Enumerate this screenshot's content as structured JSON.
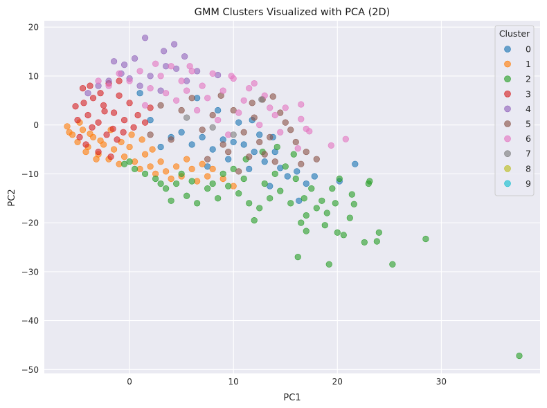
{
  "chart_data": {
    "type": "scatter",
    "title": "GMM Clusters Visualized with PCA (2D)",
    "xlabel": "PC1",
    "ylabel": "PC2",
    "xlim": [
      -8.2,
      39.5
    ],
    "ylim": [
      -50.8,
      21.3
    ],
    "xticks": [
      0,
      10,
      20,
      30
    ],
    "yticks": [
      20,
      10,
      0,
      -10,
      -20,
      -30,
      -40,
      -50
    ],
    "grid": true,
    "background": "#eaeaf2",
    "legend": {
      "title": "Cluster",
      "placement": "upper-right",
      "entries": [
        "0",
        "1",
        "2",
        "3",
        "4",
        "5",
        "6",
        "7",
        "8",
        "9"
      ]
    },
    "series": [
      {
        "name": "0",
        "color": "#1f77b4",
        "points": [
          [
            21.7,
            -8.0
          ],
          [
            20.2,
            -11.5
          ],
          [
            17.8,
            -10.5
          ],
          [
            16.1,
            -9.5
          ],
          [
            14.5,
            -8.8
          ],
          [
            13.0,
            -7.5
          ],
          [
            12.0,
            -5.5
          ],
          [
            11.0,
            -4.0
          ],
          [
            10.0,
            -3.5
          ],
          [
            9.0,
            -3.0
          ],
          [
            8.0,
            -5.0
          ],
          [
            7.0,
            -2.5
          ],
          [
            6.0,
            -4.0
          ],
          [
            5.0,
            -1.5
          ],
          [
            4.0,
            -2.5
          ],
          [
            3.0,
            -4.5
          ],
          [
            1.0,
            6.5
          ],
          [
            2.0,
            1.0
          ],
          [
            6.5,
            5.5
          ],
          [
            8.5,
            3.0
          ],
          [
            10.5,
            0.5
          ],
          [
            12.5,
            -2.0
          ],
          [
            14.0,
            -5.5
          ],
          [
            15.2,
            -10.5
          ],
          [
            17.0,
            -12.0
          ],
          [
            16.3,
            -15.5
          ],
          [
            13.5,
            -12.5
          ],
          [
            11.5,
            -9.0
          ],
          [
            9.5,
            -7.0
          ],
          [
            7.5,
            -8.5
          ],
          [
            13.8,
            -2.5
          ],
          [
            11.8,
            1.0
          ]
        ]
      },
      {
        "name": "1",
        "color": "#ff7f0e",
        "points": [
          [
            -6.0,
            -0.3
          ],
          [
            -5.5,
            -2.0
          ],
          [
            -5.0,
            -3.5
          ],
          [
            -4.5,
            -1.0
          ],
          [
            -4.0,
            -4.5
          ],
          [
            -3.5,
            -2.5
          ],
          [
            -3.0,
            -6.0
          ],
          [
            -2.5,
            -4.0
          ],
          [
            -2.0,
            -7.0
          ],
          [
            -1.5,
            -5.0
          ],
          [
            -1.0,
            -8.0
          ],
          [
            -0.5,
            -6.5
          ],
          [
            0.0,
            -4.5
          ],
          [
            0.5,
            -7.5
          ],
          [
            1.0,
            -9.0
          ],
          [
            1.5,
            -6.0
          ],
          [
            2.0,
            -8.5
          ],
          [
            2.5,
            -10.0
          ],
          [
            3.0,
            -7.5
          ],
          [
            3.5,
            -9.5
          ],
          [
            4.0,
            -11.0
          ],
          [
            4.5,
            -8.5
          ],
          [
            5.0,
            -10.5
          ],
          [
            5.5,
            -7.0
          ],
          [
            6.0,
            -9.0
          ],
          [
            6.5,
            -11.5
          ],
          [
            7.0,
            -8.0
          ],
          [
            7.5,
            -10.5
          ],
          [
            8.0,
            -9.0
          ],
          [
            9.0,
            -11.0
          ],
          [
            10.0,
            -12.5
          ],
          [
            -5.8,
            -1.5
          ],
          [
            -4.8,
            0.5
          ],
          [
            -3.8,
            -1.8
          ],
          [
            -2.8,
            -3.2
          ],
          [
            -1.8,
            -1.0
          ],
          [
            -0.8,
            -3.5
          ],
          [
            0.2,
            -2.0
          ],
          [
            1.2,
            -3.0
          ],
          [
            2.2,
            -5.0
          ],
          [
            -4.2,
            -5.5
          ],
          [
            -3.2,
            -7.0
          ]
        ]
      },
      {
        "name": "2",
        "color": "#2ca02c",
        "points": [
          [
            37.5,
            -47.2
          ],
          [
            28.5,
            -23.3
          ],
          [
            25.3,
            -28.5
          ],
          [
            24.0,
            -22.0
          ],
          [
            23.8,
            -23.8
          ],
          [
            22.6,
            -24.0
          ],
          [
            20.0,
            -22.0
          ],
          [
            20.6,
            -22.5
          ],
          [
            19.2,
            -28.5
          ],
          [
            16.2,
            -27.0
          ],
          [
            17.0,
            -21.7
          ],
          [
            21.2,
            -19.0
          ],
          [
            21.6,
            -16.2
          ],
          [
            21.4,
            -14.2
          ],
          [
            23.1,
            -11.5
          ],
          [
            23.0,
            -12.0
          ],
          [
            20.2,
            -11.0
          ],
          [
            19.5,
            -13.0
          ],
          [
            18.5,
            -15.5
          ],
          [
            18.0,
            -17.0
          ],
          [
            17.0,
            -18.5
          ],
          [
            16.5,
            -20.0
          ],
          [
            15.5,
            -16.0
          ],
          [
            14.5,
            -13.5
          ],
          [
            13.5,
            -15.0
          ],
          [
            12.5,
            -17.0
          ],
          [
            11.5,
            -16.0
          ],
          [
            10.5,
            -14.0
          ],
          [
            9.5,
            -12.5
          ],
          [
            8.5,
            -15.0
          ],
          [
            7.5,
            -13.0
          ],
          [
            6.5,
            -16.0
          ],
          [
            5.5,
            -14.5
          ],
          [
            4.5,
            -12.0
          ],
          [
            3.5,
            -13.0
          ],
          [
            2.5,
            -11.0
          ],
          [
            1.5,
            -10.0
          ],
          [
            0.5,
            -9.0
          ],
          [
            0.0,
            -7.5
          ],
          [
            -0.5,
            -8.0
          ],
          [
            12.0,
            -19.5
          ],
          [
            13.0,
            -12.0
          ],
          [
            14.0,
            -10.0
          ],
          [
            15.0,
            -8.5
          ],
          [
            16.0,
            -11.0
          ],
          [
            17.5,
            -13.0
          ],
          [
            18.8,
            -20.5
          ],
          [
            19.0,
            -18.0
          ],
          [
            11.0,
            -11.0
          ],
          [
            10.0,
            -9.0
          ],
          [
            9.0,
            -10.0
          ],
          [
            8.0,
            -12.0
          ],
          [
            6.0,
            -11.5
          ],
          [
            5.0,
            -10.0
          ],
          [
            4.0,
            -15.5
          ],
          [
            3.0,
            -12.0
          ],
          [
            15.8,
            -6.0
          ],
          [
            14.2,
            -4.5
          ],
          [
            12.8,
            -5.5
          ],
          [
            11.2,
            -7.0
          ],
          [
            16.8,
            -15.0
          ],
          [
            19.8,
            -16.0
          ]
        ]
      },
      {
        "name": "3",
        "color": "#d62728",
        "points": [
          [
            -5.2,
            3.8
          ],
          [
            -4.5,
            7.5
          ],
          [
            -4.0,
            2.0
          ],
          [
            -3.5,
            5.5
          ],
          [
            -3.0,
            0.5
          ],
          [
            -2.5,
            4.0
          ],
          [
            -2.0,
            8.5
          ],
          [
            -1.5,
            2.5
          ],
          [
            -1.0,
            6.0
          ],
          [
            -0.5,
            1.0
          ],
          [
            0.0,
            4.5
          ],
          [
            -4.8,
            -2.5
          ],
          [
            -4.2,
            -4.0
          ],
          [
            -3.6,
            -0.5
          ],
          [
            -3.0,
            -5.5
          ],
          [
            -2.2,
            -2.0
          ],
          [
            -1.8,
            -6.5
          ],
          [
            -1.2,
            -3.0
          ],
          [
            -0.6,
            -1.5
          ],
          [
            0.4,
            -0.5
          ],
          [
            -5.0,
            1.0
          ],
          [
            -4.4,
            4.5
          ],
          [
            -2.8,
            6.5
          ],
          [
            -1.0,
            9.0
          ],
          [
            0.8,
            2.0
          ],
          [
            1.5,
            0.5
          ],
          [
            2.0,
            3.5
          ],
          [
            -3.8,
            8.0
          ],
          [
            -2.4,
            2.8
          ],
          [
            -1.6,
            -0.8
          ]
        ]
      },
      {
        "name": "4",
        "color": "#9467bd",
        "points": [
          [
            1.5,
            17.8
          ],
          [
            4.3,
            16.5
          ],
          [
            3.3,
            15.1
          ],
          [
            5.3,
            14.0
          ],
          [
            0.5,
            13.6
          ],
          [
            -1.5,
            13.0
          ],
          [
            -0.5,
            12.3
          ],
          [
            -0.8,
            10.5
          ],
          [
            3.5,
            12.0
          ],
          [
            4.5,
            11.5
          ],
          [
            6.5,
            11.0
          ],
          [
            8.5,
            10.2
          ],
          [
            2.0,
            10.0
          ],
          [
            -2.0,
            9.0
          ],
          [
            -3.0,
            8.0
          ],
          [
            -4.0,
            6.5
          ],
          [
            0.0,
            9.5
          ],
          [
            1.0,
            8.0
          ],
          [
            5.5,
            9.0
          ],
          [
            3.0,
            7.0
          ]
        ]
      },
      {
        "name": "5",
        "color": "#8c564b",
        "points": [
          [
            12.8,
            5.2
          ],
          [
            13.5,
            -2.5
          ],
          [
            15.0,
            0.5
          ],
          [
            16.0,
            -3.5
          ],
          [
            14.5,
            2.5
          ],
          [
            13.0,
            -6.0
          ],
          [
            12.0,
            1.5
          ],
          [
            11.0,
            -1.5
          ],
          [
            10.0,
            3.0
          ],
          [
            9.0,
            -4.0
          ],
          [
            8.0,
            2.0
          ],
          [
            7.0,
            -1.0
          ],
          [
            6.0,
            5.5
          ],
          [
            5.0,
            3.0
          ],
          [
            4.0,
            -3.0
          ],
          [
            3.0,
            4.0
          ],
          [
            2.0,
            -2.0
          ],
          [
            17.0,
            -5.5
          ],
          [
            18.0,
            -7.0
          ],
          [
            16.5,
            -8.0
          ],
          [
            14.0,
            -7.5
          ],
          [
            11.5,
            -6.5
          ],
          [
            10.5,
            -9.5
          ],
          [
            9.5,
            -5.5
          ],
          [
            7.5,
            -7.0
          ],
          [
            8.8,
            6.0
          ],
          [
            11.8,
            4.5
          ],
          [
            13.8,
            5.8
          ],
          [
            15.5,
            -1.0
          ],
          [
            12.5,
            -3.5
          ]
        ]
      },
      {
        "name": "6",
        "color": "#e377c2",
        "points": [
          [
            16.5,
            4.2
          ],
          [
            16.5,
            1.2
          ],
          [
            17.0,
            -0.8
          ],
          [
            17.3,
            -1.3
          ],
          [
            19.4,
            -4.2
          ],
          [
            20.8,
            -2.9
          ],
          [
            16.2,
            -4.8
          ],
          [
            15.0,
            3.5
          ],
          [
            14.0,
            2.0
          ],
          [
            13.0,
            6.0
          ],
          [
            12.0,
            8.5
          ],
          [
            11.0,
            5.0
          ],
          [
            10.0,
            9.5
          ],
          [
            9.0,
            7.0
          ],
          [
            8.0,
            10.5
          ],
          [
            7.0,
            8.0
          ],
          [
            6.0,
            11.0
          ],
          [
            5.0,
            9.0
          ],
          [
            4.0,
            12.0
          ],
          [
            3.0,
            10.0
          ],
          [
            2.0,
            7.5
          ],
          [
            1.0,
            11.0
          ],
          [
            0.0,
            9.0
          ],
          [
            -1.0,
            10.5
          ],
          [
            -2.0,
            8.0
          ],
          [
            -3.0,
            9.0
          ],
          [
            4.5,
            5.0
          ],
          [
            6.5,
            3.0
          ],
          [
            8.5,
            1.0
          ],
          [
            10.5,
            2.5
          ],
          [
            12.5,
            0.0
          ],
          [
            14.5,
            -1.5
          ],
          [
            9.5,
            -2.0
          ],
          [
            7.5,
            5.5
          ],
          [
            5.5,
            7.0
          ],
          [
            3.5,
            6.5
          ],
          [
            1.5,
            4.0
          ],
          [
            11.5,
            7.5
          ],
          [
            13.5,
            3.5
          ],
          [
            2.5,
            12.5
          ],
          [
            5.8,
            12.0
          ],
          [
            9.8,
            10.0
          ]
        ]
      },
      {
        "name": "7",
        "color": "#7f7f7f",
        "points": [
          [
            12.7,
            5.2
          ],
          [
            8.0,
            -0.5
          ],
          [
            5.5,
            1.5
          ],
          [
            10.0,
            -2.0
          ]
        ]
      },
      {
        "name": "8",
        "color": "#bcbd22",
        "points": []
      },
      {
        "name": "9",
        "color": "#17becf",
        "points": []
      }
    ]
  }
}
